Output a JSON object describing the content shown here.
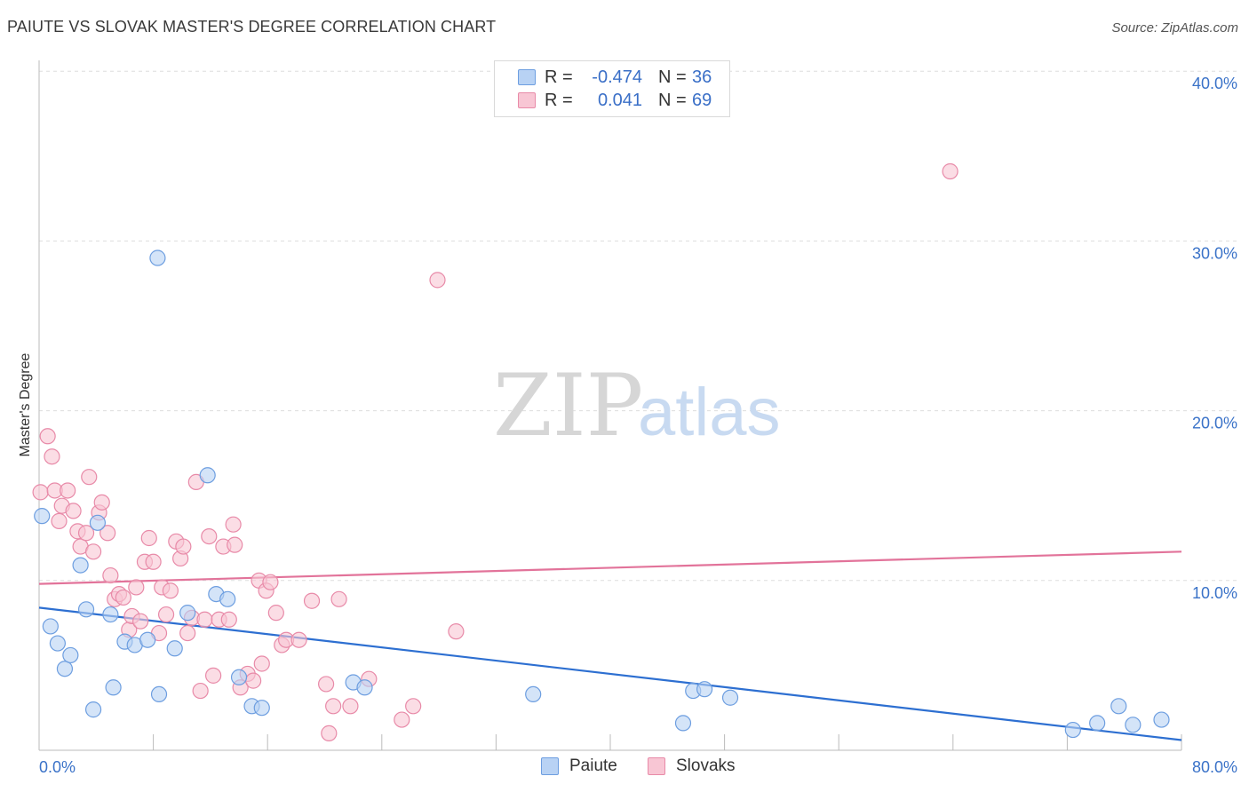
{
  "title": "PAIUTE VS SLOVAK MASTER'S DEGREE CORRELATION CHART",
  "source": "Source: ZipAtlas.com",
  "watermark": {
    "zip": "ZIP",
    "atlas": "atlas"
  },
  "colors": {
    "paiute_fill": "#b8d2f4",
    "paiute_stroke": "#6d9ee0",
    "paiute_line": "#2d6fd1",
    "slovak_fill": "#f8c6d4",
    "slovak_stroke": "#e88aa8",
    "slovak_line": "#e2739a",
    "axis_text": "#3a72c8",
    "grid": "#dddddd"
  },
  "legend": {
    "rows": [
      {
        "r_label": "R =",
        "r_value": "-0.474",
        "n_label": "N =",
        "n_value": "36"
      },
      {
        "r_label": "R =",
        "r_value": "0.041",
        "n_label": "N =",
        "n_value": "69"
      }
    ]
  },
  "bottom_legend": {
    "paiute": "Paiute",
    "slovaks": "Slovaks"
  },
  "chart_data": {
    "type": "scatter",
    "title": "PAIUTE VS SLOVAK MASTER'S DEGREE CORRELATION CHART",
    "xlabel": "",
    "ylabel": "Master's Degree",
    "xlim": [
      0,
      80
    ],
    "ylim": [
      0,
      40
    ],
    "x_tick_labels": [
      "0.0%",
      "80.0%"
    ],
    "y_tick_labels": [
      "10.0%",
      "20.0%",
      "30.0%",
      "40.0%"
    ],
    "y_ticks": [
      10,
      20,
      30,
      40
    ],
    "grid": true,
    "legend_position": "top-center",
    "series": [
      {
        "name": "Paiute",
        "trend": {
          "x": [
            0,
            80
          ],
          "y": [
            8.4,
            0.6
          ]
        },
        "points": [
          [
            0.2,
            13.8
          ],
          [
            0.8,
            7.3
          ],
          [
            1.3,
            6.3
          ],
          [
            1.8,
            4.8
          ],
          [
            2.2,
            5.6
          ],
          [
            2.9,
            10.9
          ],
          [
            3.3,
            8.3
          ],
          [
            3.8,
            2.4
          ],
          [
            4.1,
            13.4
          ],
          [
            5.0,
            8.0
          ],
          [
            5.2,
            3.7
          ],
          [
            6.0,
            6.4
          ],
          [
            6.7,
            6.2
          ],
          [
            7.6,
            6.5
          ],
          [
            8.3,
            29.0
          ],
          [
            8.4,
            3.3
          ],
          [
            9.5,
            6.0
          ],
          [
            10.4,
            8.1
          ],
          [
            11.8,
            16.2
          ],
          [
            12.4,
            9.2
          ],
          [
            13.2,
            8.9
          ],
          [
            14.0,
            4.3
          ],
          [
            14.9,
            2.6
          ],
          [
            15.6,
            2.5
          ],
          [
            22.0,
            4.0
          ],
          [
            22.8,
            3.7
          ],
          [
            34.6,
            3.3
          ],
          [
            45.1,
            1.6
          ],
          [
            45.8,
            3.5
          ],
          [
            46.6,
            3.6
          ],
          [
            48.4,
            3.1
          ],
          [
            72.4,
            1.2
          ],
          [
            74.1,
            1.6
          ],
          [
            75.6,
            2.6
          ],
          [
            76.6,
            1.5
          ],
          [
            78.6,
            1.8
          ]
        ]
      },
      {
        "name": "Slovaks",
        "trend": {
          "x": [
            0,
            80
          ],
          "y": [
            9.8,
            11.7
          ]
        },
        "points": [
          [
            0.1,
            15.2
          ],
          [
            0.6,
            18.5
          ],
          [
            0.9,
            17.3
          ],
          [
            1.1,
            15.3
          ],
          [
            1.4,
            13.5
          ],
          [
            1.6,
            14.4
          ],
          [
            2.0,
            15.3
          ],
          [
            2.4,
            14.1
          ],
          [
            2.7,
            12.9
          ],
          [
            2.9,
            12.0
          ],
          [
            3.3,
            12.8
          ],
          [
            3.5,
            16.1
          ],
          [
            3.8,
            11.7
          ],
          [
            4.2,
            14.0
          ],
          [
            4.4,
            14.6
          ],
          [
            4.8,
            12.8
          ],
          [
            5.0,
            10.3
          ],
          [
            5.3,
            8.9
          ],
          [
            5.6,
            9.2
          ],
          [
            5.9,
            9.0
          ],
          [
            6.3,
            7.1
          ],
          [
            6.5,
            7.9
          ],
          [
            6.8,
            9.6
          ],
          [
            7.1,
            7.6
          ],
          [
            7.4,
            11.1
          ],
          [
            7.7,
            12.5
          ],
          [
            8.0,
            11.1
          ],
          [
            8.4,
            6.9
          ],
          [
            8.6,
            9.6
          ],
          [
            8.9,
            8.0
          ],
          [
            9.2,
            9.4
          ],
          [
            9.6,
            12.3
          ],
          [
            9.9,
            11.3
          ],
          [
            10.1,
            12.0
          ],
          [
            10.4,
            6.9
          ],
          [
            10.7,
            7.8
          ],
          [
            11.0,
            15.8
          ],
          [
            11.3,
            3.5
          ],
          [
            11.6,
            7.7
          ],
          [
            11.9,
            12.6
          ],
          [
            12.2,
            4.4
          ],
          [
            12.6,
            7.7
          ],
          [
            12.9,
            12.0
          ],
          [
            13.3,
            7.7
          ],
          [
            13.6,
            13.3
          ],
          [
            13.7,
            12.1
          ],
          [
            14.1,
            3.7
          ],
          [
            14.6,
            4.5
          ],
          [
            15.0,
            4.1
          ],
          [
            15.4,
            10.0
          ],
          [
            15.6,
            5.1
          ],
          [
            15.9,
            9.4
          ],
          [
            16.2,
            9.9
          ],
          [
            16.6,
            8.1
          ],
          [
            17.0,
            6.2
          ],
          [
            17.3,
            6.5
          ],
          [
            18.2,
            6.5
          ],
          [
            19.1,
            8.8
          ],
          [
            20.1,
            3.9
          ],
          [
            20.3,
            1.0
          ],
          [
            20.6,
            2.6
          ],
          [
            21.0,
            8.9
          ],
          [
            21.8,
            2.6
          ],
          [
            23.1,
            4.2
          ],
          [
            25.4,
            1.8
          ],
          [
            26.2,
            2.6
          ],
          [
            27.9,
            27.7
          ],
          [
            29.2,
            7.0
          ],
          [
            63.8,
            34.1
          ]
        ]
      }
    ]
  }
}
